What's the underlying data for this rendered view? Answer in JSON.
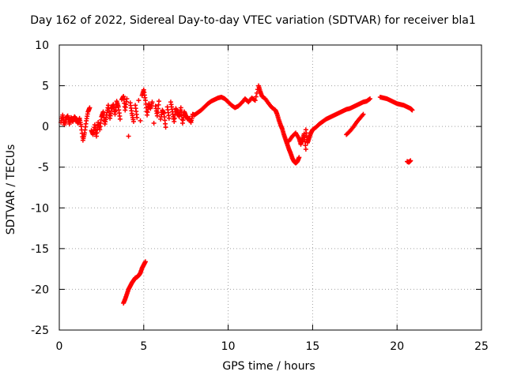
{
  "chart_data": {
    "type": "scatter",
    "title": "Day 162 of 2022, Sidereal Day-to-day VTEC variation (SDTVAR) for receiver bla1",
    "xlabel": "GPS time / hours",
    "ylabel": "SDTVAR / TECUs",
    "xlim": [
      0,
      25
    ],
    "ylim": [
      -25,
      10
    ],
    "xticks": [
      "0",
      "5",
      "10",
      "15",
      "20",
      "25"
    ],
    "yticks": [
      "10",
      "5",
      "0",
      "-5",
      "-10",
      "-15",
      "-20",
      "-25"
    ],
    "grid": true,
    "marker": "+",
    "color": "#ff0000",
    "series": [
      {
        "name": "main",
        "points": [
          [
            0.1,
            0.5
          ],
          [
            0.2,
            1.4
          ],
          [
            0.3,
            0.2
          ],
          [
            0.4,
            1.0
          ],
          [
            0.5,
            1.3
          ],
          [
            0.6,
            0.3
          ],
          [
            0.7,
            1.1
          ],
          [
            0.8,
            0.6
          ],
          [
            0.9,
            1.2
          ],
          [
            1.0,
            0.9
          ],
          [
            1.1,
            0.4
          ],
          [
            1.2,
            1.0
          ],
          [
            1.3,
            0.0
          ],
          [
            1.4,
            -1.7
          ],
          [
            1.5,
            -0.8
          ],
          [
            1.6,
            0.7
          ],
          [
            1.7,
            1.8
          ],
          [
            1.8,
            2.3
          ],
          [
            1.9,
            -0.5
          ],
          [
            2.0,
            -1.0
          ],
          [
            2.1,
            0.2
          ],
          [
            2.2,
            -1.2
          ],
          [
            2.3,
            0.5
          ],
          [
            2.4,
            -0.4
          ],
          [
            2.5,
            1.2
          ],
          [
            2.6,
            1.8
          ],
          [
            2.7,
            0.3
          ],
          [
            2.8,
            1.4
          ],
          [
            2.9,
            2.6
          ],
          [
            3.0,
            1.0
          ],
          [
            3.1,
            2.2
          ],
          [
            3.2,
            2.7
          ],
          [
            3.3,
            1.5
          ],
          [
            3.4,
            3.1
          ],
          [
            3.5,
            2.4
          ],
          [
            3.6,
            0.9
          ],
          [
            3.7,
            3.3
          ],
          [
            3.8,
            3.7
          ],
          [
            3.9,
            2.0
          ],
          [
            4.0,
            3.4
          ],
          [
            4.1,
            -1.2
          ],
          [
            4.2,
            2.9
          ],
          [
            4.3,
            1.6
          ],
          [
            4.4,
            0.6
          ],
          [
            4.5,
            2.6
          ],
          [
            4.6,
            1.1
          ],
          [
            4.7,
            3.2
          ],
          [
            4.8,
            0.7
          ],
          [
            4.9,
            3.8
          ],
          [
            5.0,
            4.5
          ],
          [
            5.1,
            3.2
          ],
          [
            5.2,
            1.4
          ],
          [
            5.3,
            2.8
          ],
          [
            5.4,
            2.2
          ],
          [
            5.5,
            3.0
          ],
          [
            5.6,
            0.4
          ],
          [
            5.7,
            2.5
          ],
          [
            5.8,
            1.3
          ],
          [
            5.9,
            3.1
          ],
          [
            6.0,
            0.9
          ],
          [
            6.1,
            2.0
          ],
          [
            6.2,
            1.6
          ],
          [
            6.3,
            -0.1
          ],
          [
            6.4,
            2.4
          ],
          [
            6.5,
            1.0
          ],
          [
            6.6,
            3.0
          ],
          [
            6.7,
            1.8
          ],
          [
            6.8,
            0.6
          ],
          [
            6.9,
            2.2
          ],
          [
            7.0,
            1.7
          ],
          [
            7.1,
            1.2
          ],
          [
            7.2,
            2.3
          ],
          [
            7.3,
            0.4
          ],
          [
            7.4,
            1.8
          ],
          [
            7.5,
            1.3
          ],
          [
            7.6,
            0.9
          ],
          [
            7.7,
            1.0
          ],
          [
            7.8,
            0.5
          ],
          [
            7.9,
            1.5
          ],
          [
            8.0,
            1.4
          ],
          [
            8.2,
            1.7
          ],
          [
            8.4,
            2.0
          ],
          [
            8.6,
            2.4
          ],
          [
            8.8,
            2.8
          ],
          [
            9.0,
            3.1
          ],
          [
            9.2,
            3.3
          ],
          [
            9.4,
            3.5
          ],
          [
            9.6,
            3.6
          ],
          [
            9.8,
            3.4
          ],
          [
            10.0,
            3.0
          ],
          [
            10.2,
            2.6
          ],
          [
            10.4,
            2.3
          ],
          [
            10.6,
            2.5
          ],
          [
            10.8,
            2.9
          ],
          [
            11.0,
            3.4
          ],
          [
            11.2,
            3.0
          ],
          [
            11.4,
            3.5
          ],
          [
            11.6,
            3.2
          ],
          [
            11.8,
            5.0
          ],
          [
            11.9,
            4.3
          ],
          [
            12.0,
            3.7
          ],
          [
            12.2,
            3.4
          ],
          [
            12.4,
            2.8
          ],
          [
            12.6,
            2.3
          ],
          [
            12.8,
            2.0
          ],
          [
            12.9,
            1.5
          ],
          [
            13.0,
            0.8
          ],
          [
            13.1,
            0.2
          ],
          [
            13.2,
            -0.3
          ],
          [
            13.3,
            -1.0
          ],
          [
            13.4,
            -1.6
          ],
          [
            13.5,
            -2.2
          ],
          [
            13.6,
            -2.8
          ],
          [
            13.7,
            -3.3
          ],
          [
            13.8,
            -3.9
          ],
          [
            13.9,
            -4.3
          ],
          [
            14.0,
            -4.5
          ],
          [
            14.1,
            -4.3
          ],
          [
            14.2,
            -3.8
          ],
          [
            13.6,
            -1.8
          ],
          [
            13.8,
            -1.2
          ],
          [
            14.0,
            -0.8
          ],
          [
            14.2,
            -1.5
          ],
          [
            14.3,
            -2.2
          ],
          [
            14.4,
            -1.6
          ],
          [
            14.5,
            -0.9
          ],
          [
            14.6,
            -2.8
          ],
          [
            14.6,
            -0.4
          ],
          [
            14.7,
            -2.0
          ],
          [
            14.8,
            -1.4
          ],
          [
            14.9,
            -0.8
          ],
          [
            15.0,
            -0.4
          ],
          [
            15.2,
            -0.1
          ],
          [
            15.4,
            0.3
          ],
          [
            15.6,
            0.6
          ],
          [
            15.8,
            0.9
          ],
          [
            16.0,
            1.1
          ],
          [
            16.2,
            1.3
          ],
          [
            16.4,
            1.5
          ],
          [
            16.6,
            1.7
          ],
          [
            16.8,
            1.9
          ],
          [
            17.0,
            2.1
          ],
          [
            17.2,
            2.2
          ],
          [
            17.4,
            2.4
          ],
          [
            17.6,
            2.6
          ],
          [
            17.8,
            2.8
          ],
          [
            18.0,
            3.0
          ],
          [
            18.2,
            3.1
          ],
          [
            18.4,
            3.4
          ],
          [
            17.0,
            -1.0
          ],
          [
            17.2,
            -0.6
          ],
          [
            17.4,
            -0.1
          ],
          [
            17.6,
            0.5
          ],
          [
            17.8,
            1.0
          ],
          [
            18.0,
            1.5
          ],
          [
            19.0,
            3.6
          ],
          [
            19.2,
            3.5
          ],
          [
            19.4,
            3.4
          ],
          [
            19.6,
            3.2
          ],
          [
            19.8,
            3.0
          ],
          [
            20.0,
            2.8
          ],
          [
            20.2,
            2.7
          ],
          [
            20.4,
            2.6
          ],
          [
            20.6,
            2.4
          ],
          [
            20.8,
            2.2
          ],
          [
            20.9,
            2.0
          ],
          [
            20.6,
            -4.3
          ],
          [
            20.7,
            -4.4
          ],
          [
            20.8,
            -4.2
          ]
        ]
      },
      {
        "name": "outlier-arc",
        "points": [
          [
            3.8,
            -21.7
          ],
          [
            3.9,
            -21.2
          ],
          [
            4.0,
            -20.6
          ],
          [
            4.1,
            -20.0
          ],
          [
            4.2,
            -19.6
          ],
          [
            4.3,
            -19.2
          ],
          [
            4.4,
            -18.9
          ],
          [
            4.5,
            -18.6
          ],
          [
            4.6,
            -18.5
          ],
          [
            4.7,
            -18.3
          ],
          [
            4.8,
            -18.0
          ],
          [
            4.9,
            -17.4
          ],
          [
            5.0,
            -17.0
          ],
          [
            5.1,
            -16.6
          ]
        ]
      }
    ]
  }
}
